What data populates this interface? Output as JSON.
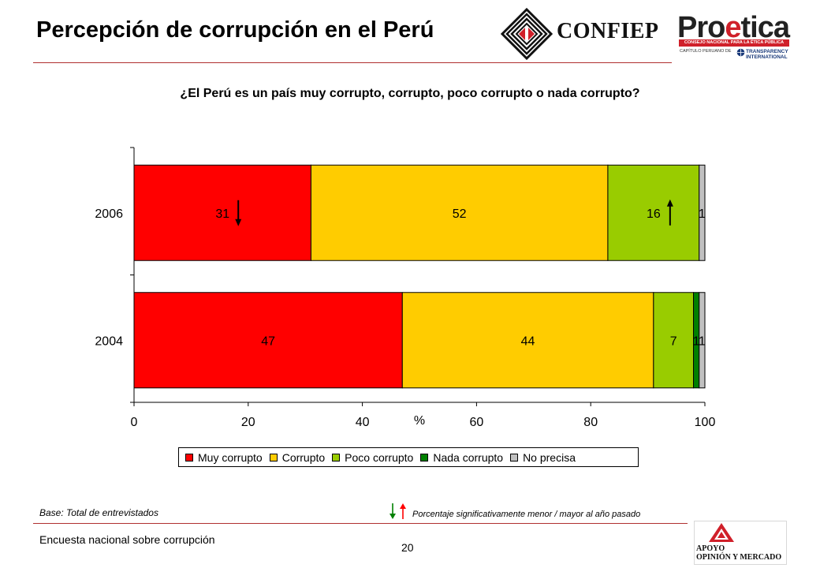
{
  "header": {
    "title": "Percepción de corrupción en el Perú"
  },
  "logos": {
    "confiep": "CONFIEP",
    "proetica_pro": "Pro",
    "proetica_e": "e",
    "proetica_tica": "tica",
    "proetica_subtitle": "CONSEJO NACIONAL PARA LA ÉTICA PÚBLICA",
    "proetica_chapter": "CAPÍTULO PERUANO DE",
    "transparency_line1": "TRANSPARENCY",
    "transparency_line2": "INTERNATIONAL",
    "apoyo_line1": "APOYO",
    "apoyo_line2": "OPINIÓN Y MERCADO"
  },
  "chart_data": {
    "type": "bar",
    "orientation": "horizontal",
    "stacked": true,
    "subtitle": "¿El Perú es un país muy corrupto, corrupto, poco corrupto o nada corrupto?",
    "xlabel": "%",
    "ylabel": "",
    "xlim": [
      0,
      100
    ],
    "x_ticks": [
      "0",
      "20",
      "40",
      "60",
      "80",
      "100"
    ],
    "categories": [
      "2006",
      "2004"
    ],
    "series": [
      {
        "name": "Muy corrupto",
        "color": "#ff0000",
        "values": [
          31,
          47
        ],
        "labels": [
          "31",
          "47"
        ]
      },
      {
        "name": "Corrupto",
        "color": "#ffcc00",
        "values": [
          52,
          44
        ],
        "labels": [
          "52",
          "44"
        ]
      },
      {
        "name": "Poco corrupto",
        "color": "#99cc00",
        "values": [
          16,
          7
        ],
        "labels": [
          "16",
          "7"
        ]
      },
      {
        "name": "Nada corrupto",
        "color": "#008000",
        "values": [
          0,
          1
        ],
        "labels": [
          "",
          "1"
        ]
      },
      {
        "name": "No precisa",
        "color": "#c0c0c0",
        "values": [
          1,
          1
        ],
        "labels": [
          "1",
          "1"
        ]
      }
    ],
    "significance_arrows": [
      {
        "category": "2006",
        "series": "Muy corrupto",
        "direction": "down"
      },
      {
        "category": "2006",
        "series": "Poco corrupto",
        "direction": "up"
      }
    ],
    "legend_position": "bottom",
    "grid": false
  },
  "footer": {
    "base": "Base: Total de entrevistados",
    "note": "Porcentaje significativamente menor / mayor al año pasado",
    "survey": "Encuesta nacional sobre corrupción",
    "page": "20",
    "arrow_down_color": "#008000",
    "arrow_up_color": "#ff0000"
  }
}
